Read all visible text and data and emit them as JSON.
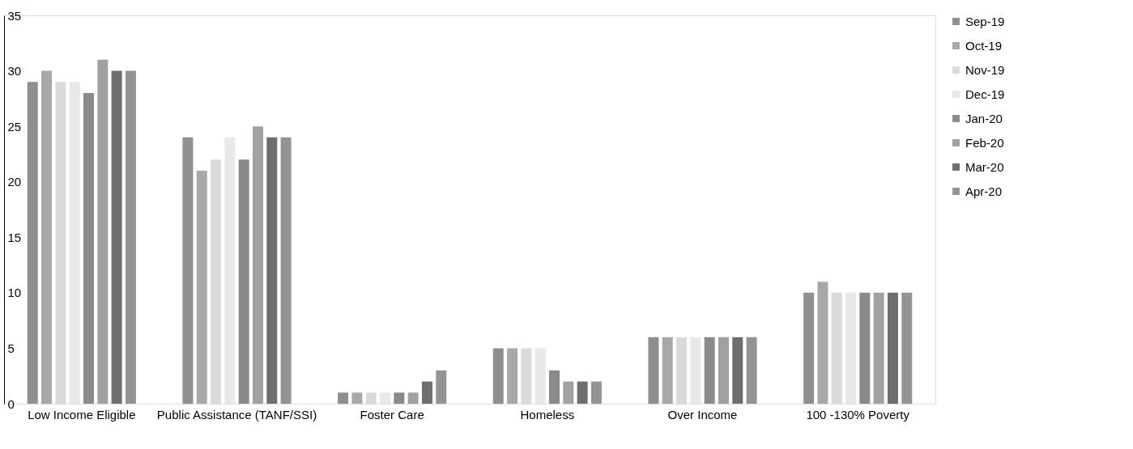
{
  "chart_data": {
    "type": "bar",
    "categories": [
      "Low Income Eligible",
      "Public Assistance (TANF/SSI)",
      "Foster Care",
      "Homeless",
      "Over Income",
      "100 -130% Poverty"
    ],
    "series": [
      {
        "name": "Sep-19",
        "color": "#8f8f8f",
        "values": [
          29,
          24,
          1,
          5,
          6,
          10
        ]
      },
      {
        "name": "Oct-19",
        "color": "#a8a8a8",
        "values": [
          30,
          21,
          1,
          5,
          6,
          11
        ]
      },
      {
        "name": "Nov-19",
        "color": "#dadada",
        "values": [
          29,
          22,
          1,
          5,
          6,
          10
        ]
      },
      {
        "name": "Dec-19",
        "color": "#e8e8e8",
        "values": [
          29,
          24,
          1,
          5,
          6,
          10
        ]
      },
      {
        "name": "Jan-20",
        "color": "#8a8a8a",
        "values": [
          28,
          22,
          1,
          3,
          6,
          10
        ]
      },
      {
        "name": "Feb-20",
        "color": "#a0a0a0",
        "values": [
          31,
          25,
          1,
          2,
          6,
          10
        ]
      },
      {
        "name": "Mar-20",
        "color": "#6e6e6e",
        "values": [
          30,
          24,
          2,
          2,
          6,
          10
        ]
      },
      {
        "name": "Apr-20",
        "color": "#939393",
        "values": [
          30,
          24,
          3,
          2,
          6,
          10
        ]
      }
    ],
    "ylim": [
      0,
      35
    ],
    "yticks": [
      0,
      5,
      10,
      15,
      20,
      25,
      30,
      35
    ],
    "grid": false,
    "legend": "right"
  }
}
